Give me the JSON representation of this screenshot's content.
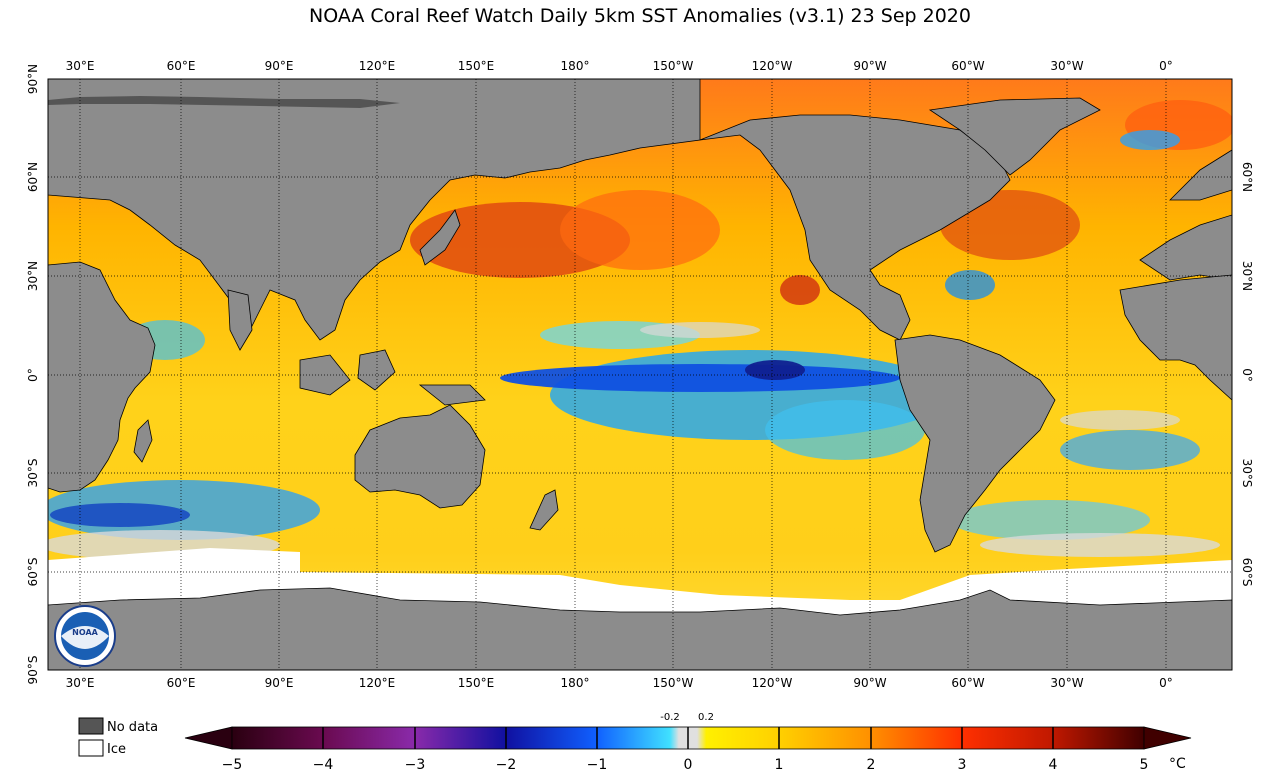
{
  "title": "NOAA Coral Reef Watch Daily 5km SST Anomalies  (v3.1)   23 Sep 2020",
  "logo": {
    "text": "NOAA"
  },
  "axes": {
    "lon_labels": [
      "30°E",
      "60°E",
      "90°E",
      "120°E",
      "150°E",
      "180°",
      "150°W",
      "120°W",
      "90°W",
      "60°W",
      "30°W",
      "0°"
    ],
    "lat_labels_left": [
      "90°N",
      "60°N",
      "30°N",
      "0°",
      "30°S",
      "60°S",
      "90°S"
    ],
    "lat_labels_right": [
      "60°N",
      "30°N",
      "0°",
      "30°S",
      "60°S"
    ]
  },
  "legend": {
    "no_data_label": "No data",
    "ice_label": "Ice"
  },
  "colorbar": {
    "ticks": [
      "−5",
      "−4",
      "−3",
      "−2",
      "−1",
      "0",
      "1",
      "2",
      "3",
      "4",
      "5"
    ],
    "minor_labels": [
      "-0.2",
      "0.2"
    ],
    "unit": "°C",
    "range": [
      -5,
      5
    ]
  },
  "colors": {
    "land": "#8c8c8c",
    "no_data": "#555555",
    "ice": "#ffffff",
    "near_zero": "#d9d9d9"
  }
}
